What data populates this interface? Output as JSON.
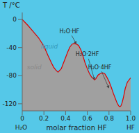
{
  "chart_data": {
    "type": "area",
    "ylabel": "T /°C",
    "xlabel": "molar fraction HF",
    "x": [
      0.0,
      0.05,
      0.1,
      0.15,
      0.2,
      0.24,
      0.27,
      0.29,
      0.31,
      0.33,
      0.36,
      0.39,
      0.42,
      0.44,
      0.46,
      0.48,
      0.5,
      0.52,
      0.54,
      0.56,
      0.58,
      0.6,
      0.62,
      0.64,
      0.655,
      0.667,
      0.68,
      0.7,
      0.72,
      0.74,
      0.76,
      0.78,
      0.8,
      0.82,
      0.84,
      0.86,
      0.875,
      0.89,
      0.9,
      0.91,
      0.92,
      0.93,
      0.94,
      0.95,
      0.97,
      1.0
    ],
    "values": [
      0.0,
      -8,
      -17,
      -26,
      -38,
      -52,
      -62,
      -68,
      -72,
      -75,
      -70,
      -58,
      -46,
      -39,
      -35,
      -34,
      -35,
      -37,
      -43,
      -52,
      -62,
      -70,
      -77,
      -82,
      -84,
      -86,
      -84,
      -79,
      -77,
      -76,
      -77,
      -82,
      -88,
      -96,
      -105,
      -113,
      -119,
      -123,
      -124,
      -123,
      -119,
      -113,
      -106,
      -98,
      -89,
      -83
    ],
    "color": "#dd0000",
    "colors": [
      "#55c8e8",
      "#a0a0a0"
    ],
    "xlim": [
      0,
      1.0
    ],
    "ylim": [
      -130,
      10
    ],
    "xticks": [
      0,
      0.2,
      0.4,
      0.6,
      0.8,
      {
        "value": 1.0,
        "label": "1.0"
      }
    ],
    "yticks": [
      0,
      -40,
      -80,
      -120
    ],
    "grid": false,
    "annotations": [
      {
        "text": "H₂O·HF",
        "xy": [
          0.5,
          -35
        ],
        "xytext": [
          0.435,
          -17
        ]
      },
      {
        "text": "H₂O·2HF",
        "xy": [
          0.667,
          -86
        ],
        "xytext": [
          0.6,
          -50
        ]
      },
      {
        "text": "H₂O·4HF",
        "xy": [
          0.8,
          -98
        ],
        "xytext": [
          0.715,
          -68
        ]
      },
      {
        "text": "liquid",
        "x": 0.25,
        "y": -38,
        "color": "#3399bb"
      },
      {
        "text": "solid",
        "x": 0.11,
        "y": -68,
        "color": "#888888"
      },
      {
        "text": "H₂O",
        "x": -0.01
      },
      {
        "text": "HF",
        "x": 1.0
      }
    ]
  }
}
